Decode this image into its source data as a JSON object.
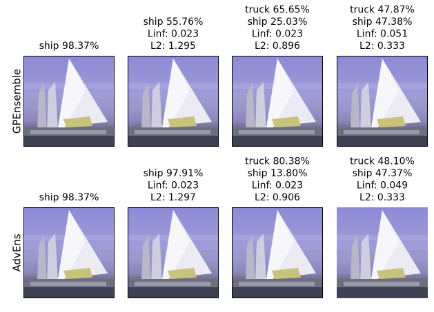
{
  "rows": [
    {
      "label": "GPEnsemble",
      "panels": [
        {
          "title": [
            "ship 98.37%"
          ]
        },
        {
          "title": [
            "ship 55.76%",
            "Linf: 0.023",
            "L2: 1.295"
          ]
        },
        {
          "title": [
            "truck 65.65%",
            "ship 25.03%",
            "Linf: 0.023",
            "L2: 0.896"
          ]
        },
        {
          "title": [
            "truck 47.87%",
            "ship 47.38%",
            "Linf: 0.051",
            "L2: 0.333"
          ]
        }
      ]
    },
    {
      "label": "AdvEns",
      "panels": [
        {
          "title": [
            "ship 98.37%"
          ]
        },
        {
          "title": [
            "ship 97.91%",
            "Linf: 0.023",
            "L2: 1.297"
          ]
        },
        {
          "title": [
            "truck 80.38%",
            "ship 13.80%",
            "Linf: 0.023",
            "L2: 0.906"
          ]
        },
        {
          "title": [
            "truck 48.10%",
            "ship 47.37%",
            "Linf: 0.049",
            "L2: 0.333"
          ]
        }
      ]
    }
  ]
}
